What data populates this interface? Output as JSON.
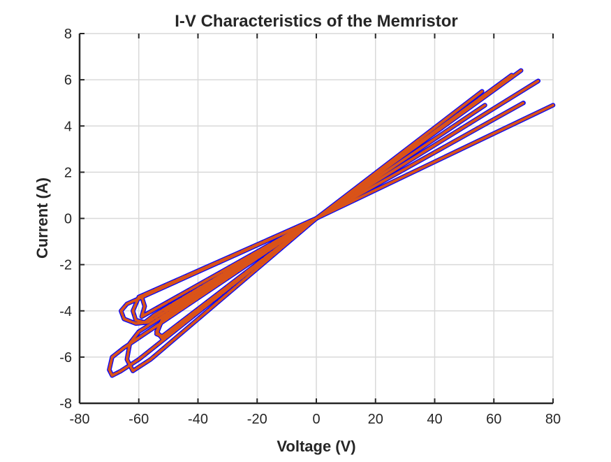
{
  "chart_data": {
    "type": "line",
    "title": "I-V Characteristics of the Memristor",
    "xlabel": "Voltage (V)",
    "ylabel": "Current (A)",
    "xlim": [
      -80,
      80
    ],
    "ylim": [
      -8,
      8
    ],
    "xticks": [
      -80,
      -60,
      -40,
      -20,
      0,
      20,
      40,
      60,
      80
    ],
    "yticks": [
      -8,
      -6,
      -4,
      -2,
      0,
      2,
      4,
      6,
      8
    ],
    "xtick_labels": [
      "-80",
      "-60",
      "-40",
      "-20",
      "0",
      "20",
      "40",
      "60",
      "80"
    ],
    "ytick_labels": [
      "-8",
      "-6",
      "-4",
      "-2",
      "0",
      "2",
      "4",
      "6",
      "8"
    ],
    "grid": true,
    "legend": "none",
    "series": [
      {
        "color": "#0000ff",
        "style": "solid-thin",
        "loops": [
          {
            "x": [
              0,
              69.2,
              0,
              -59,
              -58,
              -59,
              0
            ],
            "y": [
              0,
              6.4,
              0,
              -3.4,
              -3.8,
              -4.25,
              0
            ]
          },
          {
            "x": [
              0,
              75,
              0,
              -60,
              -62,
              -61,
              -58,
              -55,
              0
            ],
            "y": [
              0,
              5.95,
              0,
              -3.4,
              -4.0,
              -4.4,
              -4.5,
              -4.2,
              0
            ]
          },
          {
            "x": [
              0,
              80,
              0,
              -64,
              -66,
              -65,
              -61,
              -57,
              0
            ],
            "y": [
              0,
              4.9,
              0,
              -3.7,
              -4.0,
              -4.35,
              -4.55,
              -4.5,
              0
            ]
          },
          {
            "x": [
              0,
              66,
              0,
              -52,
              -54,
              -52,
              0
            ],
            "y": [
              0,
              6.2,
              0,
              -4.35,
              -5.0,
              -5.1,
              0
            ]
          },
          {
            "x": [
              0,
              70,
              0,
              -65,
              -69,
              -70,
              -69,
              -66,
              -60,
              0
            ],
            "y": [
              0,
              5.0,
              0,
              -5.6,
              -6.0,
              -6.55,
              -6.8,
              -6.6,
              -6.1,
              0
            ]
          },
          {
            "x": [
              0,
              57,
              0,
              -60,
              -63,
              -64,
              -62,
              -56,
              0
            ],
            "y": [
              0,
              4.9,
              0,
              -4.9,
              -5.4,
              -6.1,
              -6.6,
              -6.1,
              0
            ]
          },
          {
            "x": [
              0,
              56,
              0,
              -52,
              -54,
              -52,
              0
            ],
            "y": [
              0,
              5.5,
              0,
              -4.4,
              -4.9,
              -5.2,
              0
            ]
          }
        ]
      },
      {
        "color": "#d95319",
        "style": "solid-thick",
        "loops": [
          {
            "x": [
              0,
              69.2,
              0,
              -59,
              -58,
              -59,
              0
            ],
            "y": [
              0,
              6.4,
              0,
              -3.4,
              -3.8,
              -4.25,
              0
            ]
          },
          {
            "x": [
              0,
              75,
              0,
              -60,
              -62,
              -61,
              -58,
              -55,
              0
            ],
            "y": [
              0,
              5.95,
              0,
              -3.4,
              -4.0,
              -4.4,
              -4.5,
              -4.2,
              0
            ]
          },
          {
            "x": [
              0,
              80,
              0,
              -64,
              -66,
              -65,
              -61,
              -57,
              0
            ],
            "y": [
              0,
              4.9,
              0,
              -3.7,
              -4.0,
              -4.35,
              -4.55,
              -4.5,
              0
            ]
          },
          {
            "x": [
              0,
              66,
              0,
              -52,
              -54,
              -52,
              0
            ],
            "y": [
              0,
              6.2,
              0,
              -4.35,
              -5.0,
              -5.1,
              0
            ]
          },
          {
            "x": [
              0,
              70,
              0,
              -65,
              -69,
              -70,
              -69,
              -66,
              -60,
              0
            ],
            "y": [
              0,
              5.0,
              0,
              -5.6,
              -6.0,
              -6.55,
              -6.8,
              -6.6,
              -6.1,
              0
            ]
          },
          {
            "x": [
              0,
              57,
              0,
              -60,
              -63,
              -64,
              -62,
              -56,
              0
            ],
            "y": [
              0,
              4.9,
              0,
              -4.9,
              -5.4,
              -6.1,
              -6.6,
              -6.1,
              0
            ]
          },
          {
            "x": [
              0,
              56,
              0,
              -52,
              -54,
              -52,
              0
            ],
            "y": [
              0,
              5.5,
              0,
              -4.4,
              -4.9,
              -5.2,
              0
            ]
          }
        ]
      }
    ]
  }
}
